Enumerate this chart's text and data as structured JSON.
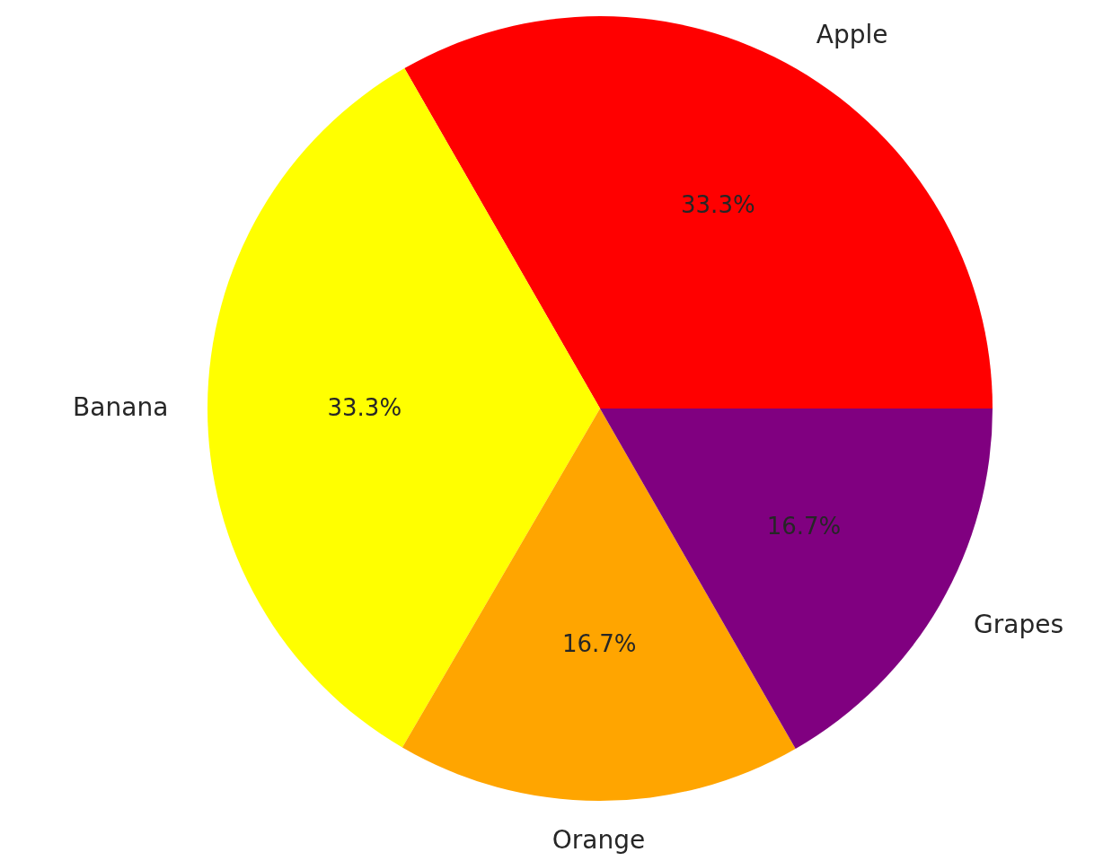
{
  "chart_data": {
    "type": "pie",
    "categories": [
      "Apple",
      "Banana",
      "Orange",
      "Grapes"
    ],
    "values": [
      33.3,
      33.3,
      16.7,
      16.7
    ],
    "value_labels": [
      "33.3%",
      "33.3%",
      "16.7%",
      "16.7%"
    ],
    "colors": [
      "#ff0000",
      "#ffff00",
      "#ffa500",
      "#800080"
    ]
  }
}
